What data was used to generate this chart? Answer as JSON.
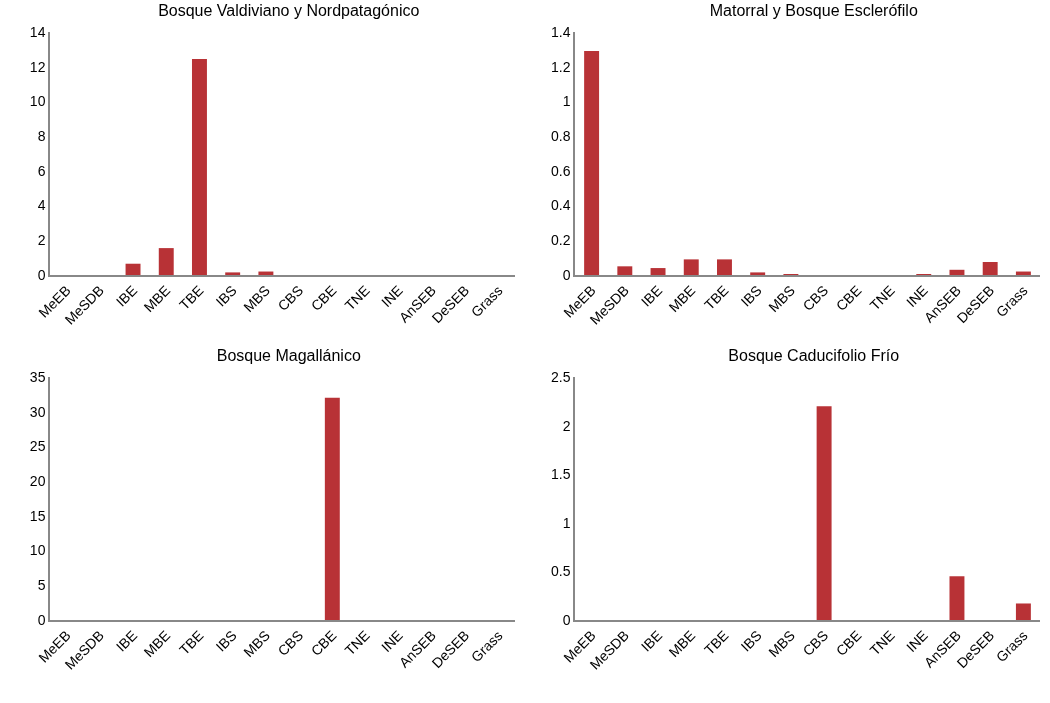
{
  "chart_data": [
    {
      "type": "bar",
      "title": "Bosque Valdiviano y Nordpatagónico",
      "categories": [
        "MeEB",
        "MeSDB",
        "IBE",
        "MBE",
        "TBE",
        "IBS",
        "MBS",
        "CBS",
        "CBE",
        "TNE",
        "INE",
        "AnSEB",
        "DeSEB",
        "Grass"
      ],
      "values": [
        0,
        0,
        0.65,
        1.55,
        12.45,
        0.15,
        0.2,
        0,
        0,
        0,
        0,
        0,
        0,
        0
      ],
      "color": "#b83236",
      "ylim": [
        0,
        14
      ],
      "yticks": [
        0,
        2,
        4,
        6,
        8,
        10,
        12,
        14
      ],
      "grid": false
    },
    {
      "type": "bar",
      "title": "Matorral y Bosque Esclerófilo",
      "categories": [
        "MeEB",
        "MeSDB",
        "IBE",
        "MBE",
        "TBE",
        "IBS",
        "MBS",
        "CBS",
        "CBE",
        "TNE",
        "INE",
        "AnSEB",
        "DeSEB",
        "Grass"
      ],
      "values": [
        1.29,
        0.05,
        0.04,
        0.09,
        0.09,
        0.015,
        0.005,
        0,
        0,
        0,
        0.005,
        0.03,
        0.075,
        0.02
      ],
      "color": "#b83236",
      "ylim": [
        0,
        1.4
      ],
      "yticks": [
        0,
        0.2,
        0.4,
        0.6,
        0.8,
        1,
        1.2,
        1.4
      ],
      "grid": false
    },
    {
      "type": "bar",
      "title": "Bosque Magallánico",
      "categories": [
        "MeEB",
        "MeSDB",
        "IBE",
        "MBE",
        "TBE",
        "IBS",
        "MBS",
        "CBS",
        "CBE",
        "TNE",
        "INE",
        "AnSEB",
        "DeSEB",
        "Grass"
      ],
      "values": [
        0,
        0,
        0,
        0,
        0,
        0,
        0,
        0,
        32,
        0,
        0,
        0,
        0,
        0
      ],
      "color": "#b83236",
      "ylim": [
        0,
        35
      ],
      "yticks": [
        0,
        5,
        10,
        15,
        20,
        25,
        30,
        35
      ],
      "grid": false
    },
    {
      "type": "bar",
      "title": "Bosque Caducifolio Frío",
      "categories": [
        "MeEB",
        "MeSDB",
        "IBE",
        "MBE",
        "TBE",
        "IBS",
        "MBS",
        "CBS",
        "CBE",
        "TNE",
        "INE",
        "AnSEB",
        "DeSEB",
        "Grass"
      ],
      "values": [
        0,
        0,
        0,
        0,
        0,
        0,
        0,
        2.2,
        0,
        0,
        0,
        0.45,
        0,
        0.17
      ],
      "color": "#b83236",
      "ylim": [
        0,
        2.5
      ],
      "yticks": [
        0,
        0.5,
        1,
        1.5,
        2,
        2.5
      ],
      "grid": false
    }
  ]
}
